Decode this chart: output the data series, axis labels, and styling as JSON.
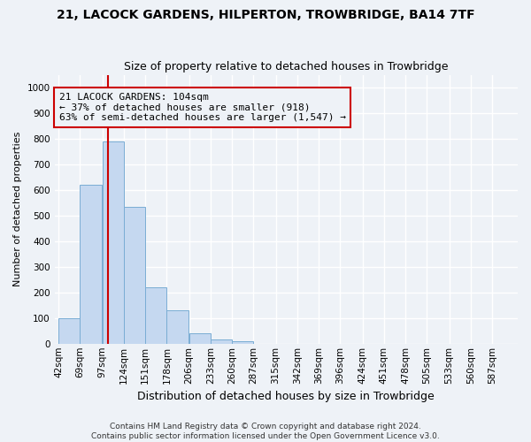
{
  "title": "21, LACOCK GARDENS, HILPERTON, TROWBRIDGE, BA14 7TF",
  "subtitle": "Size of property relative to detached houses in Trowbridge",
  "xlabel": "Distribution of detached houses by size in Trowbridge",
  "ylabel": "Number of detached properties",
  "bar_labels": [
    "42sqm",
    "69sqm",
    "97sqm",
    "124sqm",
    "151sqm",
    "178sqm",
    "206sqm",
    "233sqm",
    "260sqm",
    "287sqm",
    "315sqm",
    "342sqm",
    "369sqm",
    "396sqm",
    "424sqm",
    "451sqm",
    "478sqm",
    "505sqm",
    "533sqm",
    "560sqm",
    "587sqm"
  ],
  "bar_values": [
    100,
    620,
    790,
    535,
    220,
    130,
    40,
    15,
    10,
    0,
    0,
    0,
    0,
    0,
    0,
    0,
    0,
    0,
    0,
    0,
    0
  ],
  "bar_color": "#c5d8f0",
  "bar_edge_color": "#7aadd4",
  "bin_edges": [
    42,
    69,
    97,
    124,
    151,
    178,
    206,
    233,
    260,
    287,
    315,
    342,
    369,
    396,
    424,
    451,
    478,
    505,
    533,
    560,
    587,
    614
  ],
  "property_line_x": 104,
  "annotation_text": "21 LACOCK GARDENS: 104sqm\n← 37% of detached houses are smaller (918)\n63% of semi-detached houses are larger (1,547) →",
  "annotation_box_color": "#cc0000",
  "vline_color": "#cc0000",
  "ylim": [
    0,
    1050
  ],
  "yticks": [
    0,
    100,
    200,
    300,
    400,
    500,
    600,
    700,
    800,
    900,
    1000
  ],
  "footer_line1": "Contains HM Land Registry data © Crown copyright and database right 2024.",
  "footer_line2": "Contains public sector information licensed under the Open Government Licence v3.0.",
  "background_color": "#eef2f7",
  "grid_color": "#ffffff",
  "title_fontsize": 10,
  "subtitle_fontsize": 9,
  "ylabel_fontsize": 8,
  "xlabel_fontsize": 9,
  "tick_fontsize": 7.5,
  "annotation_fontsize": 8,
  "footer_fontsize": 6.5
}
